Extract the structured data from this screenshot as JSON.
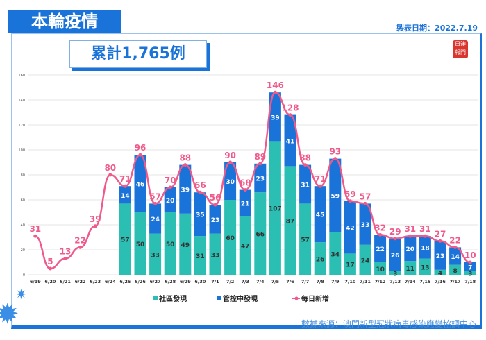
{
  "header": {
    "title": "本輪疫情",
    "date": "製表日期：2022.7.19",
    "cumulative": "累計1,765例",
    "source": "數據來源：澳門新型冠狀病毒感染應變協調中心"
  },
  "colors": {
    "community": "#2bbfb3",
    "controlled": "#1a73d9",
    "daily": "#ef5a8a",
    "accent": "#1a73d9"
  },
  "chart_data": {
    "type": "bar+line",
    "categories": [
      "6/19",
      "6/20",
      "6/21",
      "6/22",
      "6/23",
      "6/24",
      "6/25",
      "6/26",
      "6/27",
      "6/28",
      "6/29",
      "6/30",
      "7/1",
      "7/2",
      "7/3",
      "7/4",
      "7/5",
      "7/6",
      "7/7",
      "7/8",
      "7/9",
      "7/10",
      "7/11",
      "7/12",
      "7/13",
      "7/14",
      "7/15",
      "7/16",
      "7/17",
      "7/18"
    ],
    "ylim": [
      0,
      160
    ],
    "yticks": [
      0,
      20,
      40,
      60,
      80,
      100,
      120,
      140,
      160
    ],
    "grid": true,
    "legend_position": "bottom",
    "series": [
      {
        "name": "社區發現",
        "type": "stacked-bar",
        "values": [
          null,
          null,
          null,
          null,
          null,
          null,
          57,
          50,
          33,
          50,
          49,
          31,
          33,
          60,
          47,
          66,
          107,
          87,
          57,
          26,
          34,
          17,
          24,
          10,
          3,
          11,
          13,
          4,
          8,
          3
        ]
      },
      {
        "name": "管控中發現",
        "type": "stacked-bar",
        "values": [
          null,
          null,
          null,
          null,
          null,
          null,
          14,
          46,
          24,
          20,
          39,
          35,
          23,
          30,
          21,
          23,
          39,
          41,
          31,
          45,
          59,
          42,
          33,
          22,
          26,
          20,
          18,
          23,
          14,
          7
        ]
      },
      {
        "name": "每日新增",
        "type": "line",
        "values": [
          31,
          5,
          13,
          22,
          39,
          80,
          71,
          96,
          57,
          70,
          88,
          66,
          56,
          90,
          68,
          89,
          146,
          128,
          88,
          71,
          93,
          59,
          57,
          32,
          29,
          31,
          31,
          27,
          22,
          10
        ]
      }
    ]
  }
}
